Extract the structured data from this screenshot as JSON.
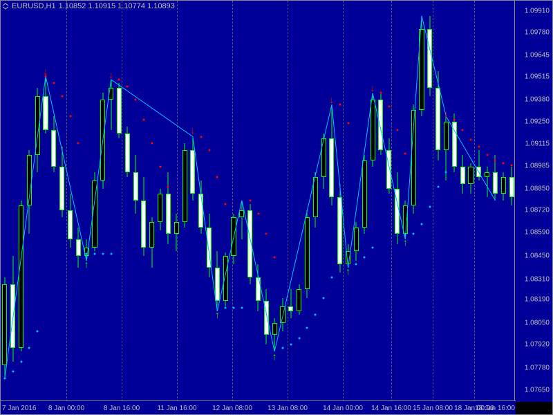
{
  "title": {
    "symbol": "EURUSD,H1",
    "quotes": "1.10852 1.10915 1.10774 1.10893"
  },
  "colors": {
    "background": "#000099",
    "candle_bull": "#00ff00",
    "candle_bear": "#00ff00",
    "candle_fill_bull": "#000000",
    "candle_fill_bear": "#ffffff",
    "zigzag": "#00bfff",
    "sar_up": "#00bfff",
    "sar_down": "#ff0000",
    "arrow_up": "#00ff00",
    "arrow_down": "#ff0000",
    "grid": "#555577",
    "text": "#c0c0c0"
  },
  "y_axis": {
    "min": 1.0758,
    "max": 1.0997,
    "ticks": [
      1.0765,
      1.0778,
      1.0792,
      1.0805,
      1.0819,
      1.0831,
      1.0845,
      1.0859,
      1.0872,
      1.0885,
      1.08985,
      1.09115,
      1.0925,
      1.0938,
      1.09515,
      1.09645,
      1.0978,
      1.0991
    ]
  },
  "x_axis": {
    "labels": [
      "7 Jan 2016",
      "8 Jan 00:00",
      "8 Jan 16:00",
      "11 Jan 16:00",
      "12 Jan 08:00",
      "13 Jan 08:00",
      "14 Jan 00:00",
      "14 Jan 16:00",
      "15 Jan 08:00",
      "18 Jan 00:00",
      "18 Jan 16:00"
    ],
    "positions": [
      15,
      95,
      175,
      255,
      335,
      415,
      495,
      565,
      625,
      685,
      745
    ]
  },
  "candles": [
    {
      "o": 1.078,
      "h": 1.0832,
      "l": 1.0772,
      "c": 1.0828
    },
    {
      "o": 1.0828,
      "h": 1.0845,
      "l": 1.0782,
      "c": 1.079
    },
    {
      "o": 1.079,
      "h": 1.0878,
      "l": 1.0788,
      "c": 1.0875
    },
    {
      "o": 1.0875,
      "h": 1.0908,
      "l": 1.0858,
      "c": 1.0905
    },
    {
      "o": 1.0905,
      "h": 1.0945,
      "l": 1.0895,
      "c": 1.094
    },
    {
      "o": 1.094,
      "h": 1.0952,
      "l": 1.0918,
      "c": 1.092
    },
    {
      "o": 1.092,
      "h": 1.0928,
      "l": 1.0895,
      "c": 1.0898
    },
    {
      "o": 1.0898,
      "h": 1.091,
      "l": 1.0868,
      "c": 1.0872
    },
    {
      "o": 1.0872,
      "h": 1.0882,
      "l": 1.085,
      "c": 1.0855
    },
    {
      "o": 1.0855,
      "h": 1.0862,
      "l": 1.0838,
      "c": 1.0845
    },
    {
      "o": 1.0845,
      "h": 1.0855,
      "l": 1.0842,
      "c": 1.085
    },
    {
      "o": 1.085,
      "h": 1.0895,
      "l": 1.0848,
      "c": 1.089
    },
    {
      "o": 1.089,
      "h": 1.0942,
      "l": 1.0885,
      "c": 1.0938
    },
    {
      "o": 1.0938,
      "h": 1.095,
      "l": 1.092,
      "c": 1.0945
    },
    {
      "o": 1.0945,
      "h": 1.0948,
      "l": 1.0915,
      "c": 1.0918
    },
    {
      "o": 1.0918,
      "h": 1.0922,
      "l": 1.0892,
      "c": 1.0895
    },
    {
      "o": 1.0895,
      "h": 1.0905,
      "l": 1.087,
      "c": 1.0878
    },
    {
      "o": 1.0878,
      "h": 1.0892,
      "l": 1.0845,
      "c": 1.085
    },
    {
      "o": 1.085,
      "h": 1.0868,
      "l": 1.0838,
      "c": 1.0865
    },
    {
      "o": 1.0865,
      "h": 1.0885,
      "l": 1.086,
      "c": 1.0882
    },
    {
      "o": 1.0882,
      "h": 1.0895,
      "l": 1.0852,
      "c": 1.0858
    },
    {
      "o": 1.0858,
      "h": 1.087,
      "l": 1.0848,
      "c": 1.0865
    },
    {
      "o": 1.0865,
      "h": 1.0912,
      "l": 1.0862,
      "c": 1.0908
    },
    {
      "o": 1.0908,
      "h": 1.0916,
      "l": 1.0878,
      "c": 1.0882
    },
    {
      "o": 1.0882,
      "h": 1.089,
      "l": 1.0858,
      "c": 1.0862
    },
    {
      "o": 1.0862,
      "h": 1.087,
      "l": 1.0832,
      "c": 1.0838
    },
    {
      "o": 1.0838,
      "h": 1.0848,
      "l": 1.0812,
      "c": 1.0818
    },
    {
      "o": 1.0818,
      "h": 1.0847,
      "l": 1.0815,
      "c": 1.0845
    },
    {
      "o": 1.0845,
      "h": 1.087,
      "l": 1.084,
      "c": 1.0868
    },
    {
      "o": 1.0868,
      "h": 1.0878,
      "l": 1.0855,
      "c": 1.0872
    },
    {
      "o": 1.0872,
      "h": 1.0876,
      "l": 1.0828,
      "c": 1.0832
    },
    {
      "o": 1.0832,
      "h": 1.084,
      "l": 1.0812,
      "c": 1.0818
    },
    {
      "o": 1.0818,
      "h": 1.0825,
      "l": 1.0792,
      "c": 1.0798
    },
    {
      "o": 1.0798,
      "h": 1.0808,
      "l": 1.0788,
      "c": 1.0805
    },
    {
      "o": 1.0805,
      "h": 1.082,
      "l": 1.08,
      "c": 1.0815
    },
    {
      "o": 1.0815,
      "h": 1.0825,
      "l": 1.0808,
      "c": 1.0812
    },
    {
      "o": 1.0812,
      "h": 1.0828,
      "l": 1.081,
      "c": 1.0825
    },
    {
      "o": 1.0825,
      "h": 1.0872,
      "l": 1.082,
      "c": 1.0868
    },
    {
      "o": 1.0868,
      "h": 1.0895,
      "l": 1.0862,
      "c": 1.0892
    },
    {
      "o": 1.0892,
      "h": 1.0918,
      "l": 1.0885,
      "c": 1.0915
    },
    {
      "o": 1.0915,
      "h": 1.0935,
      "l": 1.0875,
      "c": 1.088
    },
    {
      "o": 1.088,
      "h": 1.0888,
      "l": 1.0835,
      "c": 1.084
    },
    {
      "o": 1.084,
      "h": 1.0852,
      "l": 1.0838,
      "c": 1.0848
    },
    {
      "o": 1.0848,
      "h": 1.0865,
      "l": 1.0842,
      "c": 1.0862
    },
    {
      "o": 1.0862,
      "h": 1.0905,
      "l": 1.0858,
      "c": 1.0902
    },
    {
      "o": 1.0902,
      "h": 1.094,
      "l": 1.0898,
      "c": 1.0938
    },
    {
      "o": 1.0938,
      "h": 1.0942,
      "l": 1.0905,
      "c": 1.0908
    },
    {
      "o": 1.0908,
      "h": 1.0915,
      "l": 1.0882,
      "c": 1.0885
    },
    {
      "o": 1.0885,
      "h": 1.0895,
      "l": 1.0852,
      "c": 1.0858
    },
    {
      "o": 1.0858,
      "h": 1.0878,
      "l": 1.0855,
      "c": 1.0875
    },
    {
      "o": 1.0875,
      "h": 1.0935,
      "l": 1.087,
      "c": 1.0932
    },
    {
      "o": 1.0932,
      "h": 1.0985,
      "l": 1.0928,
      "c": 1.098
    },
    {
      "o": 1.098,
      "h": 1.0988,
      "l": 1.094,
      "c": 1.0945
    },
    {
      "o": 1.0945,
      "h": 1.0955,
      "l": 1.0902,
      "c": 1.0908
    },
    {
      "o": 1.0908,
      "h": 1.0928,
      "l": 1.089,
      "c": 1.0925
    },
    {
      "o": 1.0925,
      "h": 1.093,
      "l": 1.0895,
      "c": 1.0898
    },
    {
      "o": 1.0898,
      "h": 1.0905,
      "l": 1.0882,
      "c": 1.0888
    },
    {
      "o": 1.0888,
      "h": 1.09,
      "l": 1.0882,
      "c": 1.0898
    },
    {
      "o": 1.0898,
      "h": 1.0908,
      "l": 1.089,
      "c": 1.0892
    },
    {
      "o": 1.0892,
      "h": 1.0898,
      "l": 1.088,
      "c": 1.0895
    },
    {
      "o": 1.0895,
      "h": 1.0905,
      "l": 1.0878,
      "c": 1.0882
    },
    {
      "o": 1.0882,
      "h": 1.0895,
      "l": 1.0878,
      "c": 1.0892
    },
    {
      "o": 1.0892,
      "h": 1.0898,
      "l": 1.0875,
      "c": 1.088
    }
  ],
  "zigzag": [
    {
      "i": 0,
      "p": 1.0772
    },
    {
      "i": 5,
      "p": 1.0952
    },
    {
      "i": 10,
      "p": 1.0842
    },
    {
      "i": 13,
      "p": 1.095
    },
    {
      "i": 23,
      "p": 1.0916
    },
    {
      "i": 26,
      "p": 1.0812
    },
    {
      "i": 29,
      "p": 1.0878
    },
    {
      "i": 33,
      "p": 1.0788
    },
    {
      "i": 40,
      "p": 1.0935
    },
    {
      "i": 42,
      "p": 1.0838
    },
    {
      "i": 45,
      "p": 1.0942
    },
    {
      "i": 49,
      "p": 1.0855
    },
    {
      "i": 51,
      "p": 1.0988
    },
    {
      "i": 54,
      "p": 1.0928
    },
    {
      "i": 60,
      "p": 1.0878
    }
  ],
  "arrows_up": [
    {
      "i": 10,
      "p": 1.084
    },
    {
      "i": 26,
      "p": 1.081
    },
    {
      "i": 33,
      "p": 1.0785
    },
    {
      "i": 42,
      "p": 1.0836
    },
    {
      "i": 49,
      "p": 1.0853
    }
  ],
  "arrows_down": [
    {
      "i": 5,
      "p": 1.0955
    },
    {
      "i": 13,
      "p": 1.0953
    },
    {
      "i": 23,
      "p": 1.092
    },
    {
      "i": 40,
      "p": 1.0938
    },
    {
      "i": 45,
      "p": 1.0945
    },
    {
      "i": 54,
      "p": 1.093
    }
  ],
  "sar_down": [
    {
      "i": 5,
      "p": 1.0952
    },
    {
      "i": 6,
      "p": 1.0948
    },
    {
      "i": 7,
      "p": 1.094
    },
    {
      "i": 8,
      "p": 1.0928
    },
    {
      "i": 9,
      "p": 1.0912
    },
    {
      "i": 14,
      "p": 1.095
    },
    {
      "i": 15,
      "p": 1.0946
    },
    {
      "i": 16,
      "p": 1.0938
    },
    {
      "i": 17,
      "p": 1.0926
    },
    {
      "i": 18,
      "p": 1.0912
    },
    {
      "i": 19,
      "p": 1.0898
    },
    {
      "i": 20,
      "p": 1.0886
    },
    {
      "i": 24,
      "p": 1.0916
    },
    {
      "i": 25,
      "p": 1.0908
    },
    {
      "i": 26,
      "p": 1.0892
    },
    {
      "i": 27,
      "p": 1.0876
    },
    {
      "i": 30,
      "p": 1.0878
    },
    {
      "i": 31,
      "p": 1.087
    },
    {
      "i": 32,
      "p": 1.0858
    },
    {
      "i": 33,
      "p": 1.0844
    },
    {
      "i": 41,
      "p": 1.0935
    },
    {
      "i": 42,
      "p": 1.0924
    },
    {
      "i": 46,
      "p": 1.0942
    },
    {
      "i": 47,
      "p": 1.0934
    },
    {
      "i": 48,
      "p": 1.092
    },
    {
      "i": 49,
      "p": 1.0906
    },
    {
      "i": 55,
      "p": 1.0926
    },
    {
      "i": 56,
      "p": 1.092
    },
    {
      "i": 57,
      "p": 1.0914
    },
    {
      "i": 58,
      "p": 1.091
    },
    {
      "i": 59,
      "p": 1.0905
    },
    {
      "i": 60,
      "p": 1.0902
    },
    {
      "i": 61,
      "p": 1.09
    },
    {
      "i": 62,
      "p": 1.0899
    }
  ],
  "sar_up": [
    {
      "i": 0,
      "p": 1.0772
    },
    {
      "i": 1,
      "p": 1.0776
    },
    {
      "i": 2,
      "p": 1.0782
    },
    {
      "i": 3,
      "p": 1.079
    },
    {
      "i": 4,
      "p": 1.08
    },
    {
      "i": 10,
      "p": 1.0846
    },
    {
      "i": 11,
      "p": 1.0846
    },
    {
      "i": 12,
      "p": 1.0846
    },
    {
      "i": 13,
      "p": 1.0846
    },
    {
      "i": 27,
      "p": 1.0814
    },
    {
      "i": 28,
      "p": 1.0814
    },
    {
      "i": 29,
      "p": 1.0814
    },
    {
      "i": 34,
      "p": 1.079
    },
    {
      "i": 35,
      "p": 1.0792
    },
    {
      "i": 36,
      "p": 1.0796
    },
    {
      "i": 37,
      "p": 1.0802
    },
    {
      "i": 38,
      "p": 1.081
    },
    {
      "i": 39,
      "p": 1.082
    },
    {
      "i": 40,
      "p": 1.0832
    },
    {
      "i": 43,
      "p": 1.084
    },
    {
      "i": 44,
      "p": 1.0844
    },
    {
      "i": 45,
      "p": 1.085
    },
    {
      "i": 50,
      "p": 1.0858
    },
    {
      "i": 51,
      "p": 1.0864
    },
    {
      "i": 52,
      "p": 1.0874
    },
    {
      "i": 53,
      "p": 1.0886
    },
    {
      "i": 54,
      "p": 1.0895
    }
  ]
}
